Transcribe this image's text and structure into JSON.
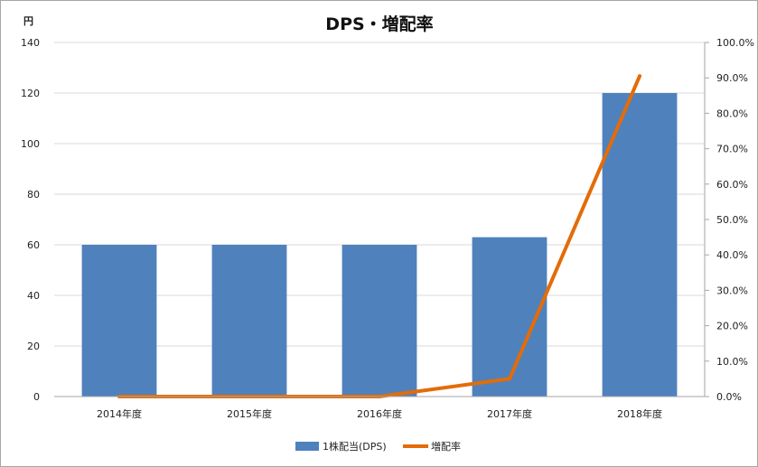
{
  "chart_data": {
    "type": "bar",
    "title": "DPS・増配率",
    "y_unit_label": "円",
    "categories": [
      "2014年度",
      "2015年度",
      "2016年度",
      "2017年度",
      "2018年度"
    ],
    "series": [
      {
        "name": "1株配当(DPS)",
        "type": "bar",
        "axis": "left",
        "values": [
          60,
          60,
          60,
          63,
          120
        ]
      },
      {
        "name": "増配率",
        "type": "line",
        "axis": "right",
        "values": [
          0.0,
          0.0,
          0.0,
          5.0,
          90.5
        ]
      }
    ],
    "y_left": {
      "min": 0,
      "max": 140,
      "step": 20
    },
    "y_right": {
      "min": 0,
      "max": 100,
      "step": 10,
      "format": "percent_one_decimal"
    },
    "legend_position": "bottom",
    "grid": true,
    "colors": {
      "bar": "#4f81bd",
      "line": "#e36c09",
      "grid": "#d9d9d9",
      "axis": "#a6a6a6"
    }
  }
}
